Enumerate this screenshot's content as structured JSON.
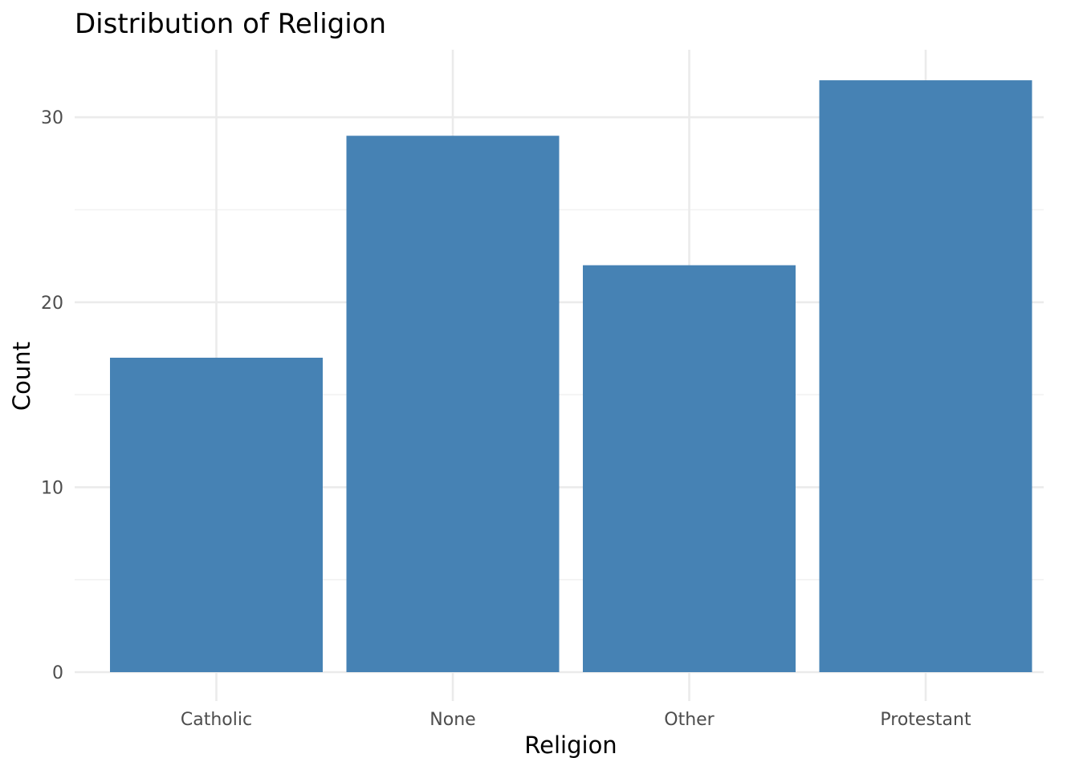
{
  "chart_data": {
    "type": "bar",
    "title": "Distribution of Religion",
    "xlabel": "Religion",
    "ylabel": "Count",
    "categories": [
      "Catholic",
      "None",
      "Other",
      "Protestant"
    ],
    "values": [
      17,
      29,
      22,
      32
    ],
    "ylim": [
      0,
      33.6
    ],
    "yticks": [
      0,
      10,
      20,
      30
    ],
    "grid": true,
    "bar_color": "#4682B4",
    "legend": "none"
  }
}
